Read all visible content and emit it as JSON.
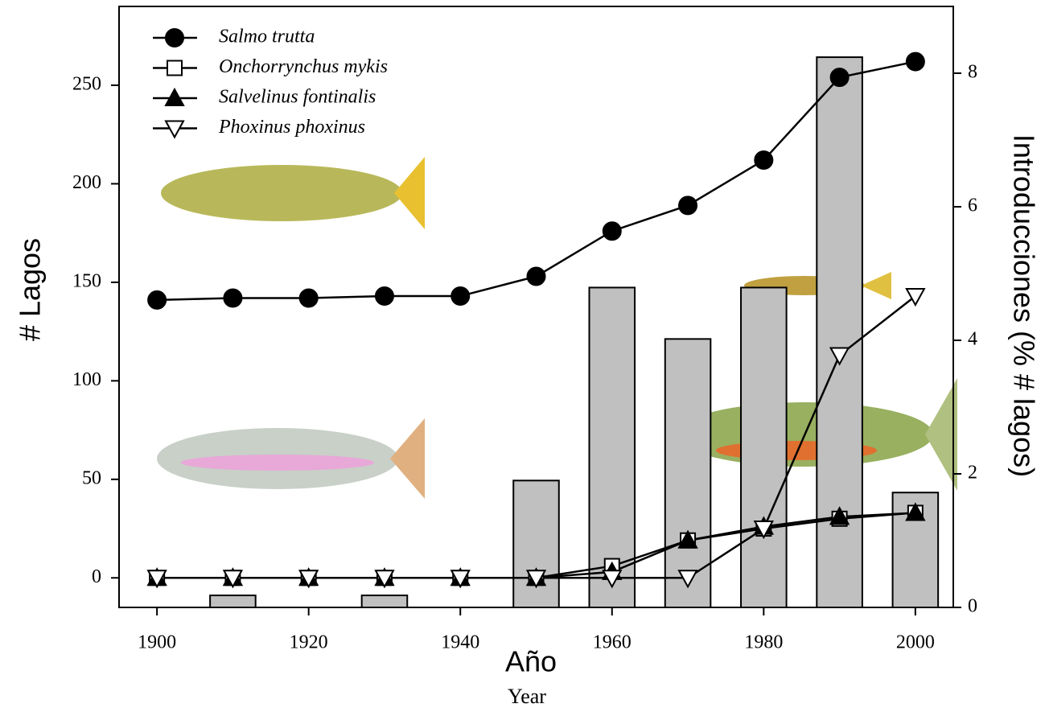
{
  "chart_data": {
    "type": "combo",
    "ylabel": "# Lagos",
    "y2label": "Introducciones (% # lagos)",
    "xlabel": "Año",
    "xlabel2": "Year",
    "x": [
      1900,
      1910,
      1920,
      1930,
      1940,
      1950,
      1960,
      1970,
      1980,
      1990,
      2000
    ],
    "xlim": [
      1895,
      2005
    ],
    "xticks": [
      1900,
      1920,
      1940,
      1960,
      1980,
      2000
    ],
    "ylim": [
      -15,
      290
    ],
    "yticks": [
      0,
      50,
      100,
      150,
      200,
      250
    ],
    "y2lim": [
      0,
      9
    ],
    "y2ticks": [
      0,
      2,
      4,
      6,
      8
    ],
    "series": [
      {
        "type": "bar",
        "axis": "y2",
        "color": "#c0c0c0",
        "values": [
          0,
          0.18,
          0,
          0.18,
          0,
          1.9,
          4.79,
          4.02,
          4.79,
          8.24,
          1.72
        ]
      },
      {
        "type": "line",
        "name": "Salmo trutta",
        "color": "#000000",
        "marker": "circle",
        "filled": true,
        "values": [
          141,
          142,
          142,
          143,
          143,
          153,
          176,
          189,
          212,
          254,
          262
        ]
      },
      {
        "type": "line",
        "name": "Onchorrynchus mykis",
        "color": "#000000",
        "marker": "square",
        "filled": false,
        "values": [
          0,
          0,
          0,
          0,
          0,
          0,
          6,
          19,
          25,
          30,
          33
        ]
      },
      {
        "type": "line",
        "name": "Salvelinus fontinalis",
        "color": "#000000",
        "marker": "triangle",
        "filled": true,
        "values": [
          0,
          0,
          0,
          0,
          0,
          0,
          3,
          19,
          26,
          31,
          33
        ]
      },
      {
        "type": "line",
        "name": "Phoxinus phoxinus",
        "color": "#000000",
        "marker": "triangle-down",
        "filled": false,
        "values": [
          0,
          0,
          0,
          0,
          0,
          0,
          0,
          0,
          25,
          113,
          143
        ]
      }
    ]
  }
}
